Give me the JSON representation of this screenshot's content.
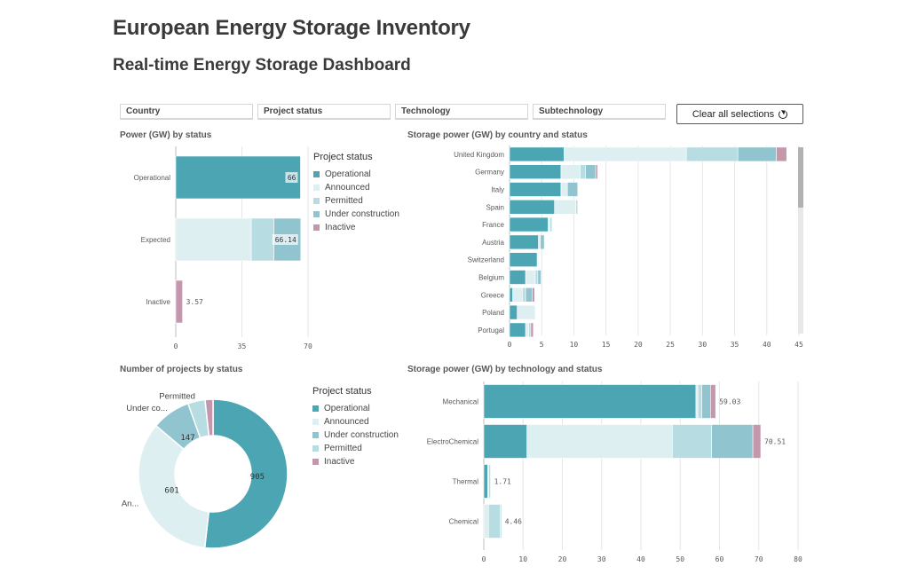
{
  "header": {
    "title": "European Energy Storage Inventory",
    "subtitle": "Real-time Energy Storage Dashboard"
  },
  "filters": [
    "Country",
    "Project status",
    "Technology",
    "Subtechnology"
  ],
  "clear_button": {
    "label": "Clear all selections",
    "icon": "refresh-icon"
  },
  "colors": {
    "Operational": "#4ba5b3",
    "Announced": "#deeff2",
    "Permitted": "#b7dde2",
    "Under construction": "#90c4cf",
    "Inactive": "#c497ad"
  },
  "panels": {
    "power_by_status": {
      "title": "Power (GW) by status",
      "legend_title": "Project status",
      "legend": [
        "Operational",
        "Announced",
        "Permitted",
        "Under construction",
        "Inactive"
      ]
    },
    "by_country": {
      "title": "Storage power (GW) by country and status"
    },
    "projects_by_status": {
      "title": "Number of projects by status",
      "legend_title": "Project status",
      "legend": [
        "Operational",
        "Announced",
        "Under construction",
        "Permitted",
        "Inactive"
      ]
    },
    "by_technology": {
      "title": "Storage power (GW) by technology and status"
    }
  },
  "chart_data": [
    {
      "type": "bar",
      "orientation": "horizontal",
      "stacked": true,
      "title": "Power (GW) by status",
      "categories": [
        "Operational",
        "Expected",
        "Inactive"
      ],
      "series": [
        {
          "name": "Operational",
          "values": [
            66,
            0,
            0
          ]
        },
        {
          "name": "Announced",
          "values": [
            0,
            40,
            0
          ]
        },
        {
          "name": "Permitted",
          "values": [
            0,
            12,
            0
          ]
        },
        {
          "name": "Under construction",
          "values": [
            0,
            14.14,
            0
          ]
        },
        {
          "name": "Inactive",
          "values": [
            0,
            0,
            3.57
          ]
        }
      ],
      "totals": [
        "66",
        "66.14",
        "3.57"
      ],
      "xlim": [
        0,
        70
      ],
      "xticks": [
        "0",
        "35",
        "70"
      ]
    },
    {
      "type": "bar",
      "orientation": "horizontal",
      "stacked": true,
      "title": "Storage power (GW) by country and status",
      "categories": [
        "United Kingdom",
        "Germany",
        "Italy",
        "Spain",
        "France",
        "Austria",
        "Switzerland",
        "Belgium",
        "Greece",
        "Poland",
        "Portugal"
      ],
      "series": [
        {
          "name": "Operational",
          "values": [
            8.5,
            8,
            8,
            7,
            6,
            4.5,
            4.3,
            2.5,
            0.5,
            1.2,
            2.5
          ]
        },
        {
          "name": "Announced",
          "values": [
            19,
            3,
            1,
            3.3,
            0.3,
            0.3,
            0.2,
            1.5,
            1.5,
            2.8,
            0.5
          ]
        },
        {
          "name": "Permitted",
          "values": [
            8,
            0.8,
            0,
            0.3,
            0.3,
            0,
            0,
            0.4,
            0.5,
            0,
            0.3
          ]
        },
        {
          "name": "Under construction",
          "values": [
            6,
            1.6,
            1.6,
            0,
            0,
            0.6,
            0,
            0.5,
            1,
            0,
            0
          ]
        },
        {
          "name": "Inactive",
          "values": [
            1.6,
            0.3,
            0,
            0,
            0,
            0,
            0,
            0,
            0.4,
            0,
            0.4
          ]
        }
      ],
      "xlim": [
        0,
        45
      ],
      "xticks": [
        "0",
        "5",
        "10",
        "15",
        "20",
        "25",
        "30",
        "35",
        "40",
        "45"
      ]
    },
    {
      "type": "pie",
      "donut": true,
      "title": "Number of projects by status",
      "slices": [
        {
          "name": "Operational",
          "value": 905,
          "label": "905"
        },
        {
          "name": "Announced",
          "value": 601,
          "label": "601",
          "outer_label": "An..."
        },
        {
          "name": "Under construction",
          "value": 147,
          "label": "147",
          "outer_label": "Under co..."
        },
        {
          "name": "Permitted",
          "value": 65,
          "label": "",
          "outer_label": "Permitted"
        },
        {
          "name": "Inactive",
          "value": 30,
          "label": ""
        }
      ]
    },
    {
      "type": "bar",
      "orientation": "horizontal",
      "stacked": true,
      "title": "Storage power (GW) by technology and status",
      "categories": [
        "Mechanical",
        "ElectroChemical",
        "Thermal",
        "Chemical"
      ],
      "series": [
        {
          "name": "Operational",
          "values": [
            54,
            11,
            1,
            0
          ]
        },
        {
          "name": "Announced",
          "values": [
            0.5,
            37,
            0.3,
            1.2
          ]
        },
        {
          "name": "Permitted",
          "values": [
            1,
            10,
            0.41,
            3
          ]
        },
        {
          "name": "Under construction",
          "values": [
            2.2,
            10.5,
            0,
            0.26
          ]
        },
        {
          "name": "Inactive",
          "values": [
            1.33,
            2.01,
            0,
            0
          ]
        }
      ],
      "totals": [
        "59.03",
        "70.51",
        "1.71",
        "4.46"
      ],
      "xlim": [
        0,
        80
      ],
      "xticks": [
        "0",
        "10",
        "20",
        "30",
        "40",
        "50",
        "60",
        "70",
        "80"
      ]
    }
  ]
}
